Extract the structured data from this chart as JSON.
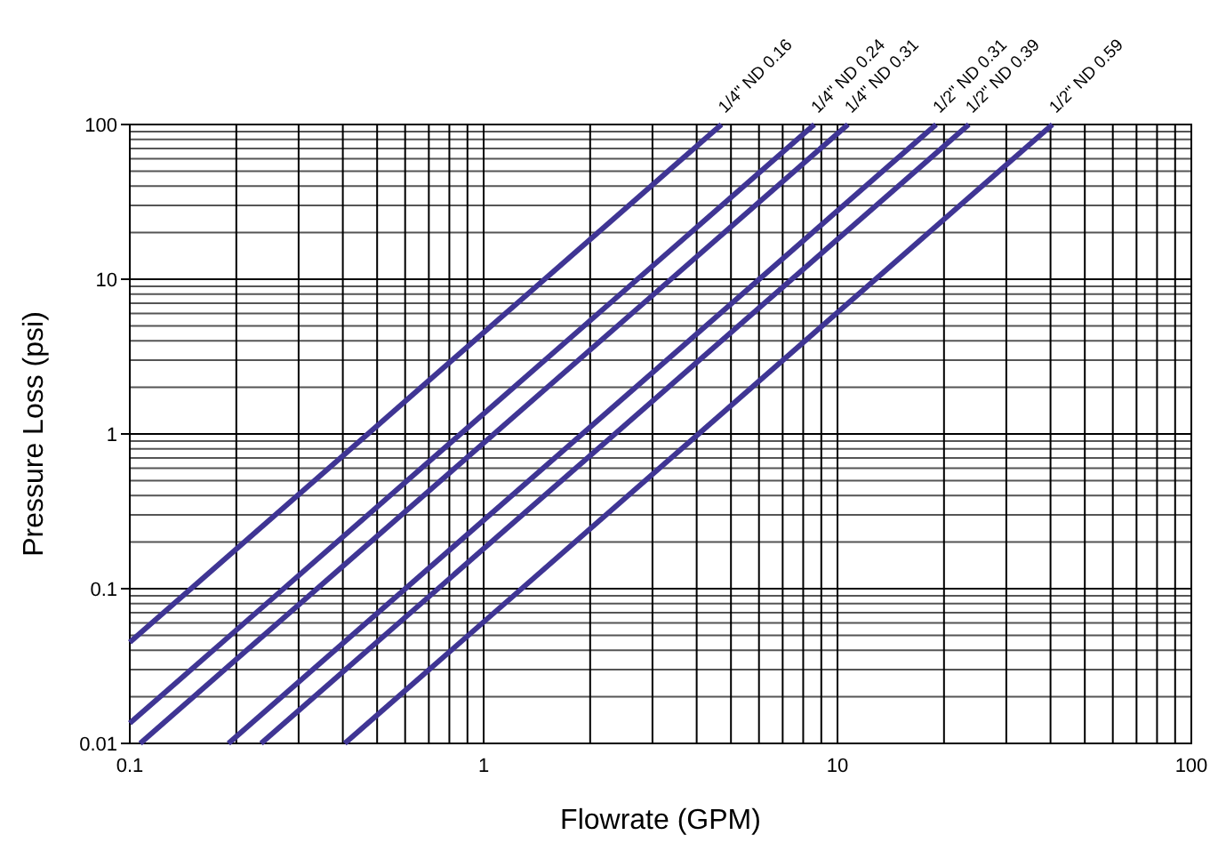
{
  "chart_data": {
    "type": "line",
    "xlabel": "Flowrate (GPM)",
    "ylabel": "Pressure Loss (psi)",
    "log": "xy",
    "grid": true,
    "marker": "none",
    "line_style": "solid",
    "xlim": [
      0.1,
      100
    ],
    "ylim": [
      0.01,
      100
    ],
    "xticks": [
      0.1,
      {
        "value": 0.2,
        "label": null
      },
      {
        "value": 0.3,
        "label": null
      },
      {
        "value": 0.4,
        "label": null
      },
      {
        "value": 0.5,
        "label": null
      },
      {
        "value": 0.6,
        "label": null
      },
      {
        "value": 0.7,
        "label": null
      },
      {
        "value": 0.8,
        "label": null
      },
      {
        "value": 0.9,
        "label": null
      },
      1,
      {
        "value": 2,
        "label": null
      },
      {
        "value": 3,
        "label": null
      },
      {
        "value": 4,
        "label": null
      },
      {
        "value": 5,
        "label": null
      },
      {
        "value": 6,
        "label": null
      },
      {
        "value": 7,
        "label": null
      },
      {
        "value": 8,
        "label": null
      },
      {
        "value": 9,
        "label": null
      },
      10,
      {
        "value": 20,
        "label": null
      },
      {
        "value": 30,
        "label": null
      },
      {
        "value": 40,
        "label": null
      },
      {
        "value": 50,
        "label": null
      },
      {
        "value": 60,
        "label": null
      },
      {
        "value": 70,
        "label": null
      },
      {
        "value": 80,
        "label": null
      },
      {
        "value": 90,
        "label": null
      },
      100
    ],
    "yticks": [
      0.01,
      {
        "value": 0.02,
        "label": null
      },
      {
        "value": 0.03,
        "label": null
      },
      {
        "value": 0.04,
        "label": null
      },
      {
        "value": 0.05,
        "label": null
      },
      {
        "value": 0.06,
        "label": null
      },
      {
        "value": 0.07,
        "label": null
      },
      {
        "value": 0.08,
        "label": null
      },
      {
        "value": 0.09,
        "label": null
      },
      0.1,
      {
        "value": 0.2,
        "label": null
      },
      {
        "value": 0.3,
        "label": null
      },
      {
        "value": 0.4,
        "label": null
      },
      {
        "value": 0.5,
        "label": null
      },
      {
        "value": 0.6,
        "label": null
      },
      {
        "value": 0.7,
        "label": null
      },
      {
        "value": 0.8,
        "label": null
      },
      {
        "value": 0.9,
        "label": null
      },
      1,
      {
        "value": 2,
        "label": null
      },
      {
        "value": 3,
        "label": null
      },
      {
        "value": 4,
        "label": null
      },
      {
        "value": 5,
        "label": null
      },
      {
        "value": 6,
        "label": null
      },
      {
        "value": 7,
        "label": null
      },
      {
        "value": 8,
        "label": null
      },
      {
        "value": 9,
        "label": null
      },
      10,
      {
        "value": 20,
        "label": null
      },
      {
        "value": 30,
        "label": null
      },
      {
        "value": 40,
        "label": null
      },
      {
        "value": 50,
        "label": null
      },
      {
        "value": 60,
        "label": null
      },
      {
        "value": 70,
        "label": null
      },
      {
        "value": 80,
        "label": null
      },
      {
        "value": 90,
        "label": null
      },
      100
    ],
    "series": [
      {
        "name": "1/4\" ND 0.16",
        "color": "#3f3594",
        "x": [
          0.1,
          4.7
        ],
        "values": [
          0.045,
          100
        ]
      },
      {
        "name": "1/4\" ND 0.24",
        "color": "#3f3594",
        "x": [
          0.1,
          8.6
        ],
        "values": [
          0.0135,
          100
        ]
      },
      {
        "name": "1/4\" ND 0.31",
        "color": "#3f3594",
        "x": [
          0.107,
          10.7
        ],
        "values": [
          0.01,
          100
        ]
      },
      {
        "name": "1/2\" ND 0.31",
        "color": "#3f3594",
        "x": [
          0.19,
          19
        ],
        "values": [
          0.01,
          100
        ]
      },
      {
        "name": "1/2\" ND 0.39",
        "color": "#3f3594",
        "x": [
          0.235,
          23.5
        ],
        "values": [
          0.01,
          100
        ]
      },
      {
        "name": "1/2\" ND 0.59",
        "color": "#3f3594",
        "x": [
          0.405,
          40.5
        ],
        "values": [
          0.01,
          100
        ]
      }
    ]
  }
}
